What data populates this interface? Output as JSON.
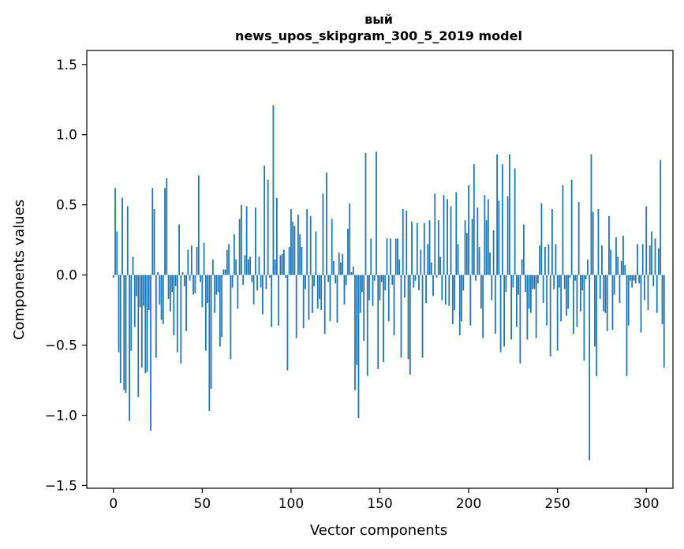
{
  "chart_data": {
    "type": "bar",
    "title_line1": "вый",
    "title_line2": "news_upos_skipgram_300_5_2019 model",
    "xlabel": "Vector components",
    "ylabel": "Components values",
    "xlim": [
      -15,
      315
    ],
    "ylim": [
      -1.52,
      1.6
    ],
    "xticks": [
      0,
      50,
      100,
      150,
      200,
      250,
      300
    ],
    "yticks": [
      -1.5,
      -1.0,
      -0.5,
      0.0,
      0.5,
      1.0,
      1.5
    ],
    "ytick_labels": [
      "−1.5",
      "−1.0",
      "−0.5",
      "0.0",
      "0.5",
      "1.0",
      "1.5"
    ],
    "bar_color": "#1f77b4",
    "values": [
      -0.02,
      0.62,
      0.31,
      -0.55,
      -0.77,
      0.55,
      -0.82,
      -0.84,
      0.49,
      -1.04,
      -0.54,
      0.13,
      -0.37,
      -0.15,
      -0.87,
      -0.23,
      -0.66,
      -0.22,
      -0.7,
      -0.69,
      -0.25,
      -1.11,
      0.62,
      0.47,
      -0.59,
      0.02,
      -0.21,
      -0.32,
      -0.35,
      0.62,
      0.69,
      -0.17,
      -0.26,
      -0.12,
      -0.43,
      -0.08,
      -0.55,
      0.36,
      -0.63,
      0.02,
      -0.08,
      -0.4,
      0.18,
      -0.04,
      0.21,
      -0.14,
      -0.13,
      0.2,
      0.71,
      -0.05,
      -0.23,
      0.23,
      -0.54,
      -0.2,
      -0.97,
      -0.81,
      0.11,
      -0.27,
      -0.14,
      -0.12,
      -0.51,
      -0.44,
      0.04,
      0.04,
      0.18,
      0.22,
      -0.6,
      -0.09,
      0.29,
      0.11,
      -0.24,
      0.4,
      0.5,
      -0.07,
      0.14,
      0.49,
      0.11,
      0.13,
      -0.05,
      -0.21,
      0.48,
      -0.11,
      0.13,
      -0.09,
      -0.28,
      0.78,
      -0.1,
      0.68,
      -0.02,
      -0.37,
      1.21,
      0.11,
      0.55,
      -0.36,
      0.14,
      0.15,
      0.18,
      -0.02,
      -0.68,
      0.2,
      0.47,
      0.38,
      0.35,
      -0.45,
      0.43,
      0.29,
      0.2,
      -0.38,
      -0.1,
      0.47,
      -0.32,
      0.42,
      -0.27,
      -0.08,
      0.31,
      -0.24,
      -0.17,
      -0.25,
      0.58,
      -0.42,
      0.73,
      -0.05,
      -0.33,
      0.4,
      0.1,
      -0.06,
      -0.34,
      0.16,
      0.09,
      0.15,
      -0.21,
      -0.07,
      0.33,
      0.51,
      0.02,
      0.06,
      -0.82,
      -0.64,
      -1.02,
      -0.27,
      -0.12,
      -0.47,
      0.87,
      -0.72,
      -0.18,
      0.26,
      -0.22,
      -0.04,
      0.88,
      -0.67,
      -0.18,
      -0.05,
      -0.62,
      -0.11,
      0.26,
      -0.33,
      0.26,
      -0.07,
      -0.43,
      0.26,
      0.26,
      0.11,
      -0.59,
      0.47,
      -0.16,
      0.46,
      -0.6,
      -0.71,
      0.38,
      -0.09,
      -0.04,
      0.37,
      -0.11,
      0.18,
      -0.59,
      0.37,
      -0.2,
      0.22,
      0.39,
      0.09,
      -0.15,
      0.58,
      -0.02,
      0.39,
      0.13,
      -0.18,
      0.57,
      -0.21,
      0.54,
      -0.22,
      0.49,
      -0.35,
      -0.25,
      0.59,
      0.22,
      -0.43,
      -0.33,
      -0.11,
      0.39,
      0.3,
      0.64,
      -0.36,
      0.4,
      0.79,
      -0.04,
      0.48,
      0.2,
      -0.24,
      -0.45,
      0.57,
      0.39,
      0.54,
      0.16,
      -0.18,
      0.32,
      -0.42,
      0.86,
      0.53,
      -0.55,
      0.79,
      -0.51,
      -0.12,
      0.56,
      0.86,
      -0.46,
      -0.09,
      0.76,
      -0.37,
      -0.14,
      -0.63,
      0.11,
      0.36,
      -0.12,
      -0.46,
      -0.24,
      -0.27,
      -0.1,
      -0.1,
      -0.45,
      -0.06,
      0.21,
      0.51,
      -0.2,
      0.2,
      -0.36,
      0.22,
      -0.58,
      0.47,
      -0.1,
      0.22,
      -0.54,
      -0.09,
      -0.33,
      0.64,
      -0.1,
      -0.29,
      -0.24,
      -0.02,
      0.68,
      -0.42,
      -0.04,
      -0.37,
      0.52,
      -0.26,
      -0.11,
      -0.61,
      -0.03,
      0.11,
      -1.32,
      0.86,
      0.45,
      -0.51,
      -0.72,
      0.47,
      -0.17,
      0.21,
      -0.26,
      -0.27,
      -0.4,
      0.42,
      0.18,
      -0.39,
      -0.14,
      0.27,
      0.13,
      -0.2,
      0.1,
      0.28,
      0.07,
      -0.72,
      -0.36,
      -0.04,
      -0.09,
      -0.04,
      -0.06,
      0.22,
      -0.06,
      -0.41,
      0.22,
      -0.18,
      0.49,
      -0.25,
      0.21,
      0.31,
      -0.08,
      0.26,
      -0.27,
      0.19,
      0.82,
      -0.35,
      -0.66
    ]
  }
}
